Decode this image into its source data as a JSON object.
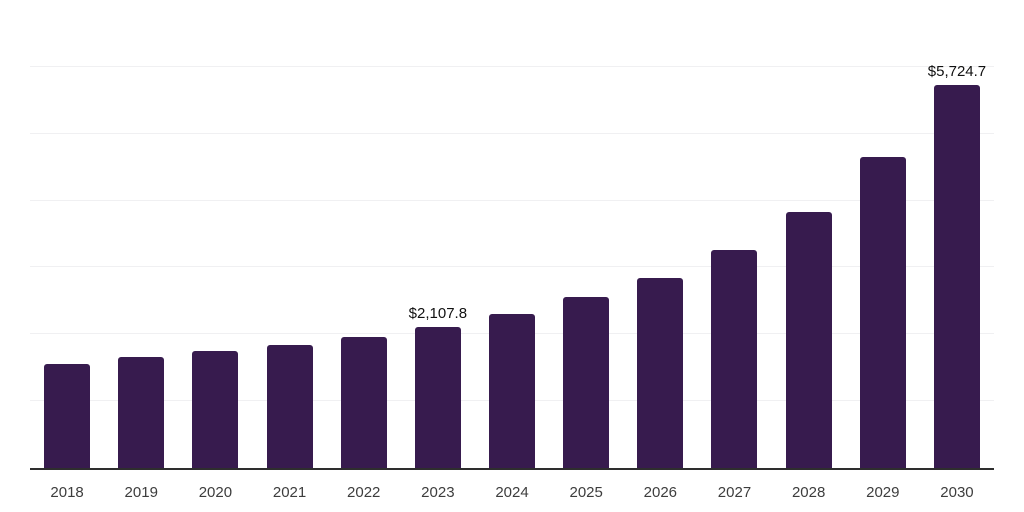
{
  "page": {
    "background": "#ffffff"
  },
  "chart_data": {
    "type": "bar",
    "title": "",
    "xlabel": "",
    "ylabel": "",
    "categories": [
      "2018",
      "2019",
      "2020",
      "2021",
      "2022",
      "2023",
      "2024",
      "2025",
      "2026",
      "2027",
      "2028",
      "2029",
      "2030"
    ],
    "values": [
      1551.2,
      1655.7,
      1745.1,
      1834.6,
      1953.8,
      2107.8,
      2297.4,
      2550.6,
      2848.9,
      3256.2,
      3834.1,
      4654.2,
      5724.7
    ],
    "data_labels": {
      "2023": "$2,107.8",
      "2030": "$5,724.7"
    },
    "ylim": [
      0,
      7000
    ],
    "grid_step": 1000,
    "gridlines": true,
    "y_tick_labels_visible": false,
    "legend_position": "none",
    "colors": {
      "bar": "#371b4e",
      "gridline": "#f0f0f2",
      "axis_line": "#2e2e2e",
      "tick_label": "#3d3d3d",
      "data_label": "#111111",
      "background": "#ffffff"
    }
  }
}
